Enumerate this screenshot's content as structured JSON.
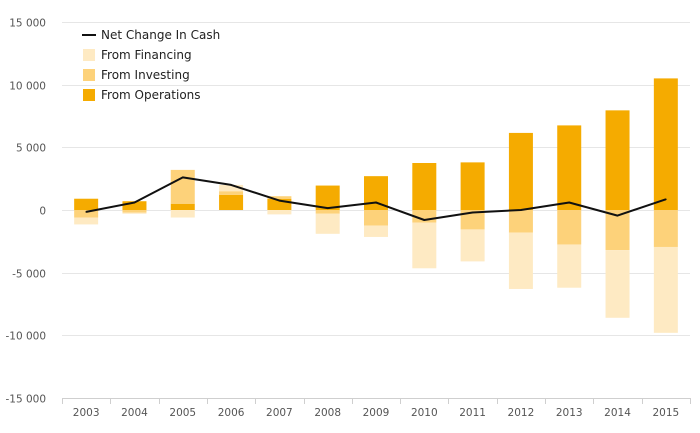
{
  "chart_data": {
    "type": "bar",
    "categories": [
      "2003",
      "2004",
      "2005",
      "2006",
      "2007",
      "2008",
      "2009",
      "2010",
      "2011",
      "2012",
      "2013",
      "2014",
      "2015"
    ],
    "series": [
      {
        "name": "From Operations",
        "kind": "bar",
        "color": "#f5ab00",
        "values": [
          900,
          700,
          500,
          1200,
          900,
          1950,
          2700,
          3750,
          3800,
          6150,
          6750,
          7950,
          10500
        ]
      },
      {
        "name": "From Investing",
        "kind": "bar",
        "color": "#fdd27a",
        "values": [
          -600,
          -200,
          2700,
          300,
          200,
          -300,
          -1250,
          -1000,
          -1550,
          -1800,
          -2750,
          -3200,
          -2950
        ]
      },
      {
        "name": "From Financing",
        "kind": "bar",
        "color": "#feeac3",
        "values": [
          -550,
          -100,
          -600,
          500,
          -350,
          -1600,
          -900,
          -3650,
          -2550,
          -4500,
          -3450,
          -5400,
          -6850
        ]
      },
      {
        "name": "Net Change In Cash",
        "kind": "line",
        "color": "#111111",
        "values": [
          -150,
          600,
          2600,
          2000,
          750,
          150,
          600,
          -800,
          -200,
          0,
          600,
          -450,
          850
        ]
      }
    ],
    "legend_order": [
      "Net Change In Cash",
      "From Financing",
      "From Investing",
      "From Operations"
    ],
    "legend_placement": "top-left",
    "ylim": [
      -15000,
      15000
    ],
    "yticks": [
      -15000,
      -10000,
      -5000,
      0,
      5000,
      10000,
      15000
    ],
    "ytick_labels": [
      "-15 000",
      "-10 000",
      "-5 000",
      "0",
      "5 000",
      "10 000",
      "15 000"
    ],
    "grid": true,
    "title": "",
    "xlabel": "",
    "ylabel": ""
  }
}
